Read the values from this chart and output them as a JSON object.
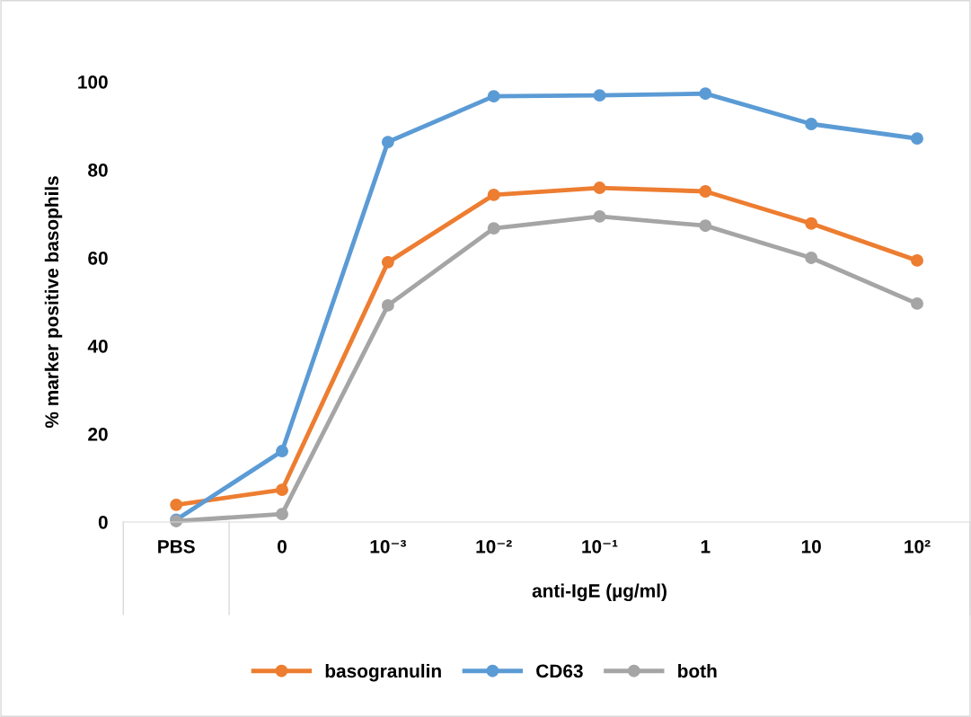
{
  "chart_data": {
    "type": "line",
    "ylabel": "% marker positive basophils",
    "xlabel": "anti-IgE (µg/ml)",
    "categories": [
      "PBS",
      "0",
      "10⁻³",
      "10⁻²",
      "10⁻¹",
      "1",
      "10",
      "10²"
    ],
    "series": [
      {
        "name": "basogranulin",
        "color": "#ed7d31",
        "values": [
          3.9,
          7.3,
          59.0,
          74.3,
          75.9,
          75.1,
          67.8,
          59.4
        ]
      },
      {
        "name": "CD63",
        "color": "#5b9bd5",
        "values": [
          0.5,
          16.1,
          86.3,
          96.7,
          96.9,
          97.3,
          90.4,
          87.1
        ]
      },
      {
        "name": "both",
        "color": "#a5a5a5",
        "values": [
          0.2,
          1.8,
          49.2,
          66.7,
          69.4,
          67.3,
          60.0,
          49.6
        ]
      }
    ],
    "ylim": [
      0,
      100
    ],
    "yticks": [
      0,
      20,
      40,
      60,
      80,
      100
    ],
    "grid": false,
    "legend": "bottom",
    "marker": "circle",
    "line_style": "solid"
  }
}
